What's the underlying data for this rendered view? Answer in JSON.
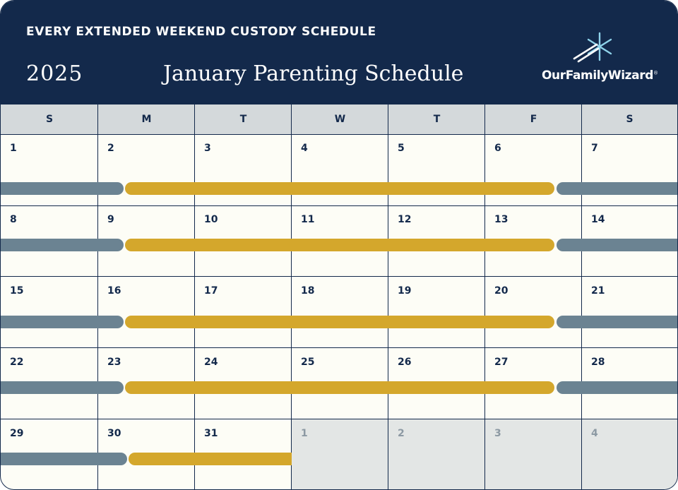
{
  "header": {
    "title": "EVERY EXTENDED WEEKEND CUSTODY SCHEDULE",
    "year": "2025",
    "month_title": "January Parenting Schedule",
    "logo_text": "OurFamilyWizard",
    "logo_mark": "®"
  },
  "weekdays": [
    "S",
    "M",
    "T",
    "W",
    "T",
    "F",
    "S"
  ],
  "weeks": [
    [
      "1",
      "2",
      "3",
      "4",
      "5",
      "6",
      "7"
    ],
    [
      "8",
      "9",
      "10",
      "11",
      "12",
      "13",
      "14"
    ],
    [
      "15",
      "16",
      "17",
      "18",
      "19",
      "20",
      "21"
    ],
    [
      "22",
      "23",
      "24",
      "25",
      "26",
      "27",
      "28"
    ],
    [
      "29",
      "30",
      "31",
      "1",
      "2",
      "3",
      "4"
    ]
  ],
  "other_month_from_week5_index": 3,
  "colors": {
    "navy": "#13294b",
    "parent_a_bar": "#6b8392",
    "parent_b_bar": "#d4a72c",
    "other_month_bg": "#e3e6e5"
  },
  "icons": {
    "logo": "starburst-logo-icon"
  }
}
